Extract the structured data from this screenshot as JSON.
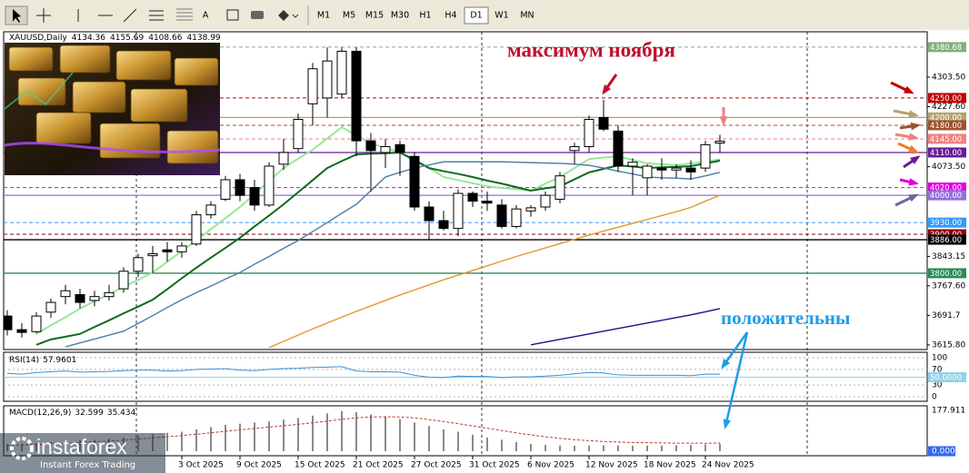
{
  "toolbar": {
    "tools": [
      "A"
    ],
    "timeframes": [
      "M1",
      "M5",
      "M15",
      "M30",
      "H1",
      "H4",
      "D1",
      "W1",
      "MN"
    ],
    "active": "D1"
  },
  "annotations": {
    "peak": "максимум ноября",
    "note": "положительны"
  },
  "logo": {
    "brand": "instaforex",
    "tagline": "Instant Forex Trading"
  },
  "chart_data": [
    {
      "type": "candlestick",
      "title": "XAUUSD,Daily",
      "categories": [
        null,
        null,
        null,
        null,
        null,
        null,
        null,
        null,
        null,
        null,
        null,
        null,
        "3 Oct 2025",
        null,
        null,
        null,
        "9 Oct 2025",
        null,
        null,
        null,
        "15 Oct 2025",
        null,
        null,
        null,
        "21 Oct 2025",
        null,
        null,
        null,
        "27 Oct 2025",
        null,
        null,
        null,
        "31 Oct 2025",
        null,
        null,
        null,
        "6 Nov 2025",
        null,
        null,
        null,
        "12 Nov 2025",
        null,
        null,
        null,
        "18 Nov 2025",
        null,
        null,
        null,
        "24 Nov 2025",
        null
      ],
      "open": [
        3690,
        3655,
        3650,
        3700,
        3740,
        3745,
        3730,
        3740,
        3760,
        3805,
        3845,
        3860,
        3855,
        3875,
        3950,
        3990,
        4040,
        4020,
        3975,
        4080,
        4120,
        4235,
        4250,
        4260,
        4370,
        4140,
        4110,
        4130,
        4100,
        3970,
        3935,
        3915,
        4005,
        3985,
        3975,
        3920,
        3960,
        3970,
        3990,
        4115,
        4125,
        4200,
        4165,
        4075,
        4045,
        4070,
        4065,
        4070,
        4070,
        4134.36
      ],
      "high": [
        3705,
        3672,
        3700,
        3735,
        3770,
        3760,
        3755,
        3770,
        3815,
        3850,
        3870,
        3880,
        3880,
        3960,
        3985,
        4050,
        4055,
        4040,
        4085,
        4145,
        4210,
        4340,
        4380,
        4380,
        4380,
        4160,
        4145,
        4140,
        4110,
        3985,
        3960,
        4015,
        4010,
        4010,
        3990,
        3975,
        3975,
        4010,
        4060,
        4135,
        4205,
        4245,
        4180,
        4095,
        4080,
        4095,
        4080,
        4090,
        4140,
        4155.69
      ],
      "low": [
        3640,
        3635,
        3645,
        3685,
        3720,
        3710,
        3715,
        3730,
        3750,
        3790,
        3800,
        3830,
        3840,
        3870,
        3940,
        3985,
        3985,
        3960,
        3970,
        4065,
        4110,
        4180,
        4200,
        4250,
        4100,
        4010,
        4070,
        4050,
        3960,
        3885,
        3910,
        3895,
        3970,
        3960,
        3915,
        3915,
        3945,
        3960,
        3980,
        4080,
        4110,
        4165,
        4060,
        4000,
        4000,
        4040,
        4045,
        4040,
        4060,
        4108.66
      ],
      "close": [
        3655,
        3648,
        3690,
        3725,
        3755,
        3725,
        3740,
        3750,
        3805,
        3840,
        3850,
        3855,
        3870,
        3950,
        3975,
        4040,
        4000,
        3975,
        4075,
        4110,
        4195,
        4325,
        4345,
        4370,
        4140,
        4115,
        4125,
        4110,
        3970,
        3935,
        3915,
        4005,
        3985,
        3980,
        3920,
        3965,
        3968,
        4000,
        4050,
        4125,
        4195,
        4170,
        4075,
        4085,
        4075,
        4065,
        4070,
        4060,
        4130,
        4138.99
      ],
      "series": [
        {
          "color": "#98e698",
          "values": [
            null,
            null,
            3644,
            3666,
            3687,
            3709,
            3728,
            3746,
            3765,
            3783,
            3802,
            3829,
            3857,
            3884,
            3913,
            3941,
            3970,
            4003,
            4037,
            4070,
            4094,
            4117,
            4146,
            4175,
            4154,
            4133,
            4122,
            4110,
            4093,
            4070,
            4047,
            4039,
            4031,
            4023,
            4019,
            4016,
            4012,
            4030,
            4047,
            4070,
            4093,
            4097,
            4100,
            4091,
            4082,
            4080,
            4077,
            4082,
            4086,
            4093
          ]
        },
        {
          "color": "#0b6b1e",
          "values": [
            null,
            null,
            3616,
            3630,
            3637,
            3644,
            3662,
            3679,
            3697,
            3714,
            3732,
            3759,
            3787,
            3814,
            3840,
            3865,
            3891,
            3920,
            3948,
            3977,
            4008,
            4039,
            4070,
            4088,
            4105,
            4107,
            4108,
            4110,
            4090,
            4070,
            4062,
            4055,
            4047,
            4038,
            4030,
            4021,
            4012,
            4018,
            4023,
            4041,
            4059,
            4068,
            4077,
            4074,
            4070,
            4072,
            4073,
            4075,
            4082,
            4089
          ]
        },
        {
          "color": "#4a7ba6",
          "values": [
            null,
            null,
            null,
            null,
            3611,
            3621,
            3631,
            3641,
            3651,
            3671,
            3691,
            3712,
            3732,
            3750,
            3767,
            3785,
            3802,
            3823,
            3843,
            3864,
            3884,
            3907,
            3930,
            3954,
            3977,
            4012,
            4047,
            4059,
            4070,
            4078,
            4086,
            4086,
            4086,
            4086,
            4086,
            4085,
            4084,
            4083,
            4082,
            4080,
            4077,
            4070,
            4062,
            4055,
            4047,
            4045,
            4044,
            4042,
            4050,
            4059
          ]
        },
        {
          "color": "#e0992e",
          "values": [
            null,
            null,
            null,
            null,
            null,
            null,
            null,
            null,
            null,
            null,
            null,
            null,
            null,
            null,
            null,
            null,
            null,
            null,
            3609,
            3625,
            3641,
            3657,
            3672,
            3687,
            3702,
            3716,
            3730,
            3744,
            3757,
            3770,
            3783,
            3795,
            3807,
            3819,
            3831,
            3843,
            3854,
            3865,
            3876,
            3887,
            3898,
            3908,
            3918,
            3928,
            3938,
            3948,
            3958,
            3969,
            3985,
            4000
          ]
        },
        {
          "color": "#14148c",
          "values": [
            null,
            null,
            null,
            null,
            null,
            null,
            null,
            null,
            null,
            null,
            null,
            null,
            null,
            null,
            null,
            null,
            null,
            null,
            null,
            null,
            null,
            null,
            null,
            null,
            null,
            null,
            null,
            null,
            null,
            null,
            null,
            null,
            null,
            null,
            null,
            null,
            3616,
            3623,
            3630,
            3637,
            3644,
            3651,
            3658,
            3665,
            3672,
            3679,
            3686,
            3693,
            3701,
            3709
          ]
        }
      ],
      "levels": [
        {
          "value": 4380.68,
          "label": "4380.68",
          "color": "#7fb07f",
          "dash": true
        },
        {
          "value": 4250,
          "label": "4250.00",
          "color": "#c00000",
          "dash": true
        },
        {
          "value": 4200,
          "label": "4200.00",
          "color": "#b3a36a",
          "dash": false
        },
        {
          "value": 4180,
          "label": "4180.00",
          "color": "#a0522d",
          "dash": true
        },
        {
          "value": 4145,
          "label": "4145.00",
          "color": "#f08080",
          "dash": true
        },
        {
          "value": 4110,
          "label": "4110.00",
          "color": "#6a1b9a",
          "dash": false
        },
        {
          "value": 4020,
          "label": "4020.00",
          "color": "#e000e0",
          "dash": true
        },
        {
          "value": 4000,
          "label": "4000.00",
          "color": "#9370db",
          "dash": false
        },
        {
          "value": 3930,
          "label": "3930.00",
          "color": "#3399ff",
          "dash": true
        },
        {
          "value": 3900,
          "label": "3900.00",
          "color": "#8b0000",
          "dash": true
        },
        {
          "value": 3886,
          "label": "3886.00",
          "color": "#000000",
          "dash": false
        },
        {
          "value": 3800,
          "label": "3800.00",
          "color": "#2e8b57",
          "dash": false
        }
      ],
      "ylim": [
        3604,
        4420
      ],
      "yticks": [
        {
          "value": 4303.5,
          "label": "4303.50"
        },
        {
          "value": 4227.6,
          "label": "4227.60"
        },
        {
          "value": 4073.5,
          "label": "4073.50"
        },
        3843.15,
        {
          "value": 3767.6,
          "label": "3767.60"
        },
        3691.7,
        {
          "value": 3615.8,
          "label": "3615.80"
        }
      ]
    },
    {
      "type": "line",
      "title": "RSI(14)",
      "color": "#3c8fd6",
      "values": [
        60,
        58,
        62,
        64,
        66,
        63,
        64,
        65,
        67,
        68,
        68,
        66,
        67,
        70,
        71,
        72,
        68,
        67,
        70,
        72,
        73,
        75,
        76,
        77,
        66,
        64,
        64,
        63,
        55,
        50,
        49,
        53,
        52,
        52,
        49,
        51,
        51,
        53,
        55,
        59,
        62,
        61,
        56,
        55,
        55,
        55,
        55,
        54,
        58,
        57.9601
      ],
      "levels": [
        {
          "value": 50,
          "label": "50.0000",
          "color": "#8fd3e8"
        }
      ],
      "ylim": [
        -11.6,
        114
      ],
      "yticks": [
        100,
        70,
        30,
        0
      ]
    },
    {
      "type": "macd",
      "title": "MACD(12,26,9)",
      "series": [
        {
          "color": "#8a8a8a",
          "values": [
            30,
            32,
            35,
            40,
            45,
            48,
            50,
            55,
            60,
            68,
            75,
            80,
            85,
            95,
            105,
            115,
            120,
            125,
            130,
            138,
            145,
            155,
            165,
            175,
            170,
            160,
            150,
            140,
            125,
            110,
            95,
            85,
            72,
            60,
            50,
            40,
            32,
            28,
            25,
            24,
            25,
            26,
            25,
            24,
            24,
            25,
            26,
            27,
            30,
            32.599
          ]
        },
        {
          "color": "#c0392b",
          "values": [
            25,
            27,
            29,
            32,
            35,
            38,
            41,
            44,
            48,
            53,
            58,
            63,
            68,
            74,
            80,
            87,
            93,
            99,
            105,
            111,
            117,
            124,
            131,
            139,
            145,
            149,
            150,
            149,
            145,
            138,
            129,
            120,
            110,
            100,
            90,
            80,
            71,
            63,
            56,
            50,
            46,
            42,
            40,
            38,
            37,
            36,
            35,
            35,
            35,
            35.434
          ]
        }
      ],
      "ylim": [
        -19.8,
        197.7
      ],
      "yticks": [
        177.911,
        {
          "value": 0,
          "label": "0.000"
        }
      ]
    }
  ]
}
